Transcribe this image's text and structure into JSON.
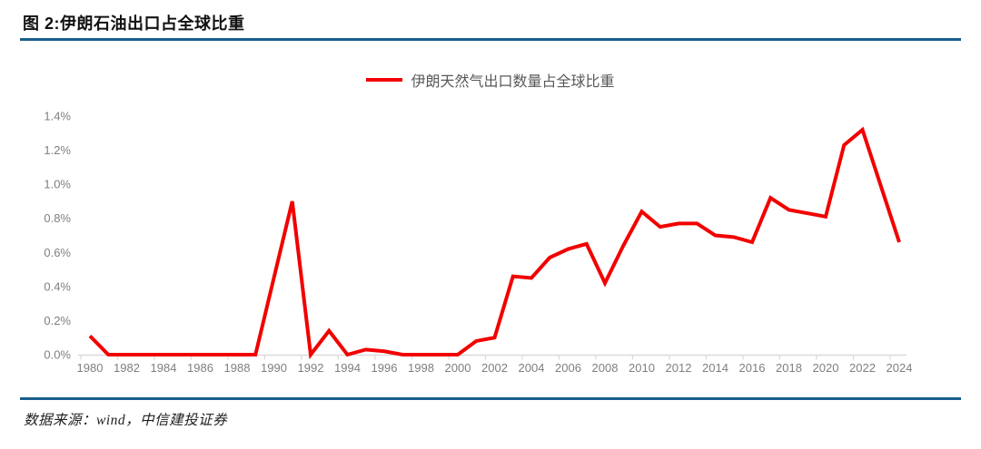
{
  "header": {
    "title": "图 2:伊朗石油出口占全球比重"
  },
  "footer": {
    "source": "数据来源：wind，中信建投证券"
  },
  "colors": {
    "accent_blue": "#175e8c",
    "line_red": "#f20000",
    "axis_gray": "#d9d9d9",
    "tick_label_gray": "#7f7f7f",
    "legend_text_gray": "#595959"
  },
  "chart_data": {
    "type": "line",
    "title": "",
    "legend": "伊朗天然气出口数量占全球比重",
    "legend_position": "top-center",
    "grid": false,
    "xlabel": "",
    "ylabel": "",
    "ylim": [
      0,
      1.4
    ],
    "ytick_step": 0.2,
    "yticks": [
      "0.0%",
      "0.2%",
      "0.4%",
      "0.6%",
      "0.8%",
      "1.0%",
      "1.2%",
      "1.4%"
    ],
    "xtick_step": 2,
    "x": [
      1980,
      1981,
      1982,
      1983,
      1984,
      1985,
      1986,
      1987,
      1988,
      1989,
      1990,
      1991,
      1992,
      1993,
      1994,
      1995,
      1996,
      1997,
      1998,
      1999,
      2000,
      2001,
      2002,
      2003,
      2004,
      2005,
      2006,
      2007,
      2008,
      2009,
      2010,
      2011,
      2012,
      2013,
      2014,
      2015,
      2016,
      2017,
      2018,
      2019,
      2020,
      2021,
      2022,
      2023,
      2024
    ],
    "series": [
      {
        "name": "伊朗天然气出口数量占全球比重",
        "unit": "%",
        "values": [
          0.11,
          0.0,
          0.0,
          0.0,
          0.0,
          0.0,
          0.0,
          0.0,
          0.0,
          0.0,
          0.45,
          0.9,
          0.0,
          0.14,
          0.0,
          0.03,
          0.02,
          0.0,
          0.0,
          0.0,
          0.0,
          0.08,
          0.1,
          0.46,
          0.45,
          0.57,
          0.62,
          0.65,
          0.42,
          0.64,
          0.84,
          0.75,
          0.77,
          0.77,
          0.7,
          0.69,
          0.66,
          0.92,
          0.85,
          0.83,
          0.81,
          1.23,
          1.32,
          0.99,
          0.66
        ]
      }
    ]
  }
}
